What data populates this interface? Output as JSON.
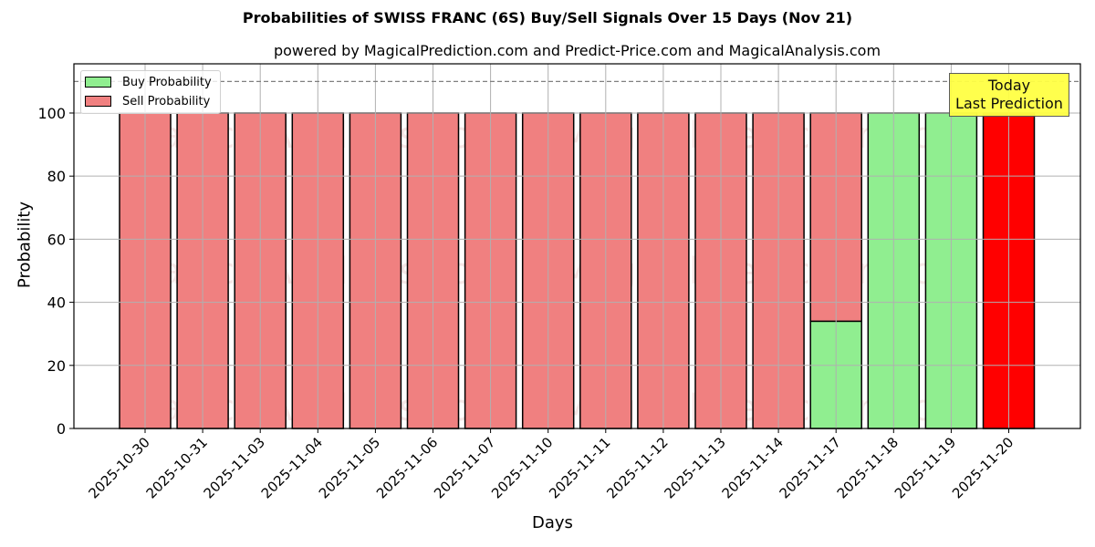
{
  "chart_data": {
    "type": "bar",
    "stacked": true,
    "title": "Probabilities of SWISS FRANC (6S) Buy/Sell Signals Over 15 Days (Nov 21)",
    "subtitle": "powered by MagicalPrediction.com and Predict-Price.com and MagicalAnalysis.com",
    "xlabel": "Days",
    "ylabel": "Probability",
    "ylim": [
      0,
      115.6
    ],
    "yticks": [
      0,
      20,
      40,
      60,
      80,
      100
    ],
    "grid": true,
    "legend_position": "upper left",
    "categories": [
      "2025-10-30",
      "2025-10-31",
      "2025-11-03",
      "2025-11-04",
      "2025-11-05",
      "2025-11-06",
      "2025-11-07",
      "2025-11-10",
      "2025-11-11",
      "2025-11-12",
      "2025-11-13",
      "2025-11-14",
      "2025-11-17",
      "2025-11-18",
      "2025-11-19",
      "2025-11-20"
    ],
    "series": [
      {
        "name": "Buy Probability",
        "color": "#90ee90",
        "values": [
          0,
          0,
          0,
          0,
          0,
          0,
          0,
          0,
          0,
          0,
          0,
          0,
          34,
          100,
          100,
          0
        ]
      },
      {
        "name": "Sell Probability",
        "color": "#f08080",
        "values": [
          100,
          100,
          100,
          100,
          100,
          100,
          100,
          100,
          100,
          100,
          100,
          100,
          66,
          0,
          0,
          100
        ]
      }
    ],
    "highlight": {
      "index": 15,
      "color": "#ff0000",
      "label_line1": "Today",
      "label_line2": "Last Prediction"
    },
    "reference_line": {
      "y": 110,
      "style": "dashed",
      "color": "#808080"
    },
    "watermarks": [
      "MagicalAnalysis.com",
      "MagicalPrediction.com"
    ]
  },
  "legend": {
    "buy_label": "Buy Probability",
    "sell_label": "Sell Probability"
  },
  "annotation": {
    "line1": "Today",
    "line2": "Last Prediction"
  }
}
